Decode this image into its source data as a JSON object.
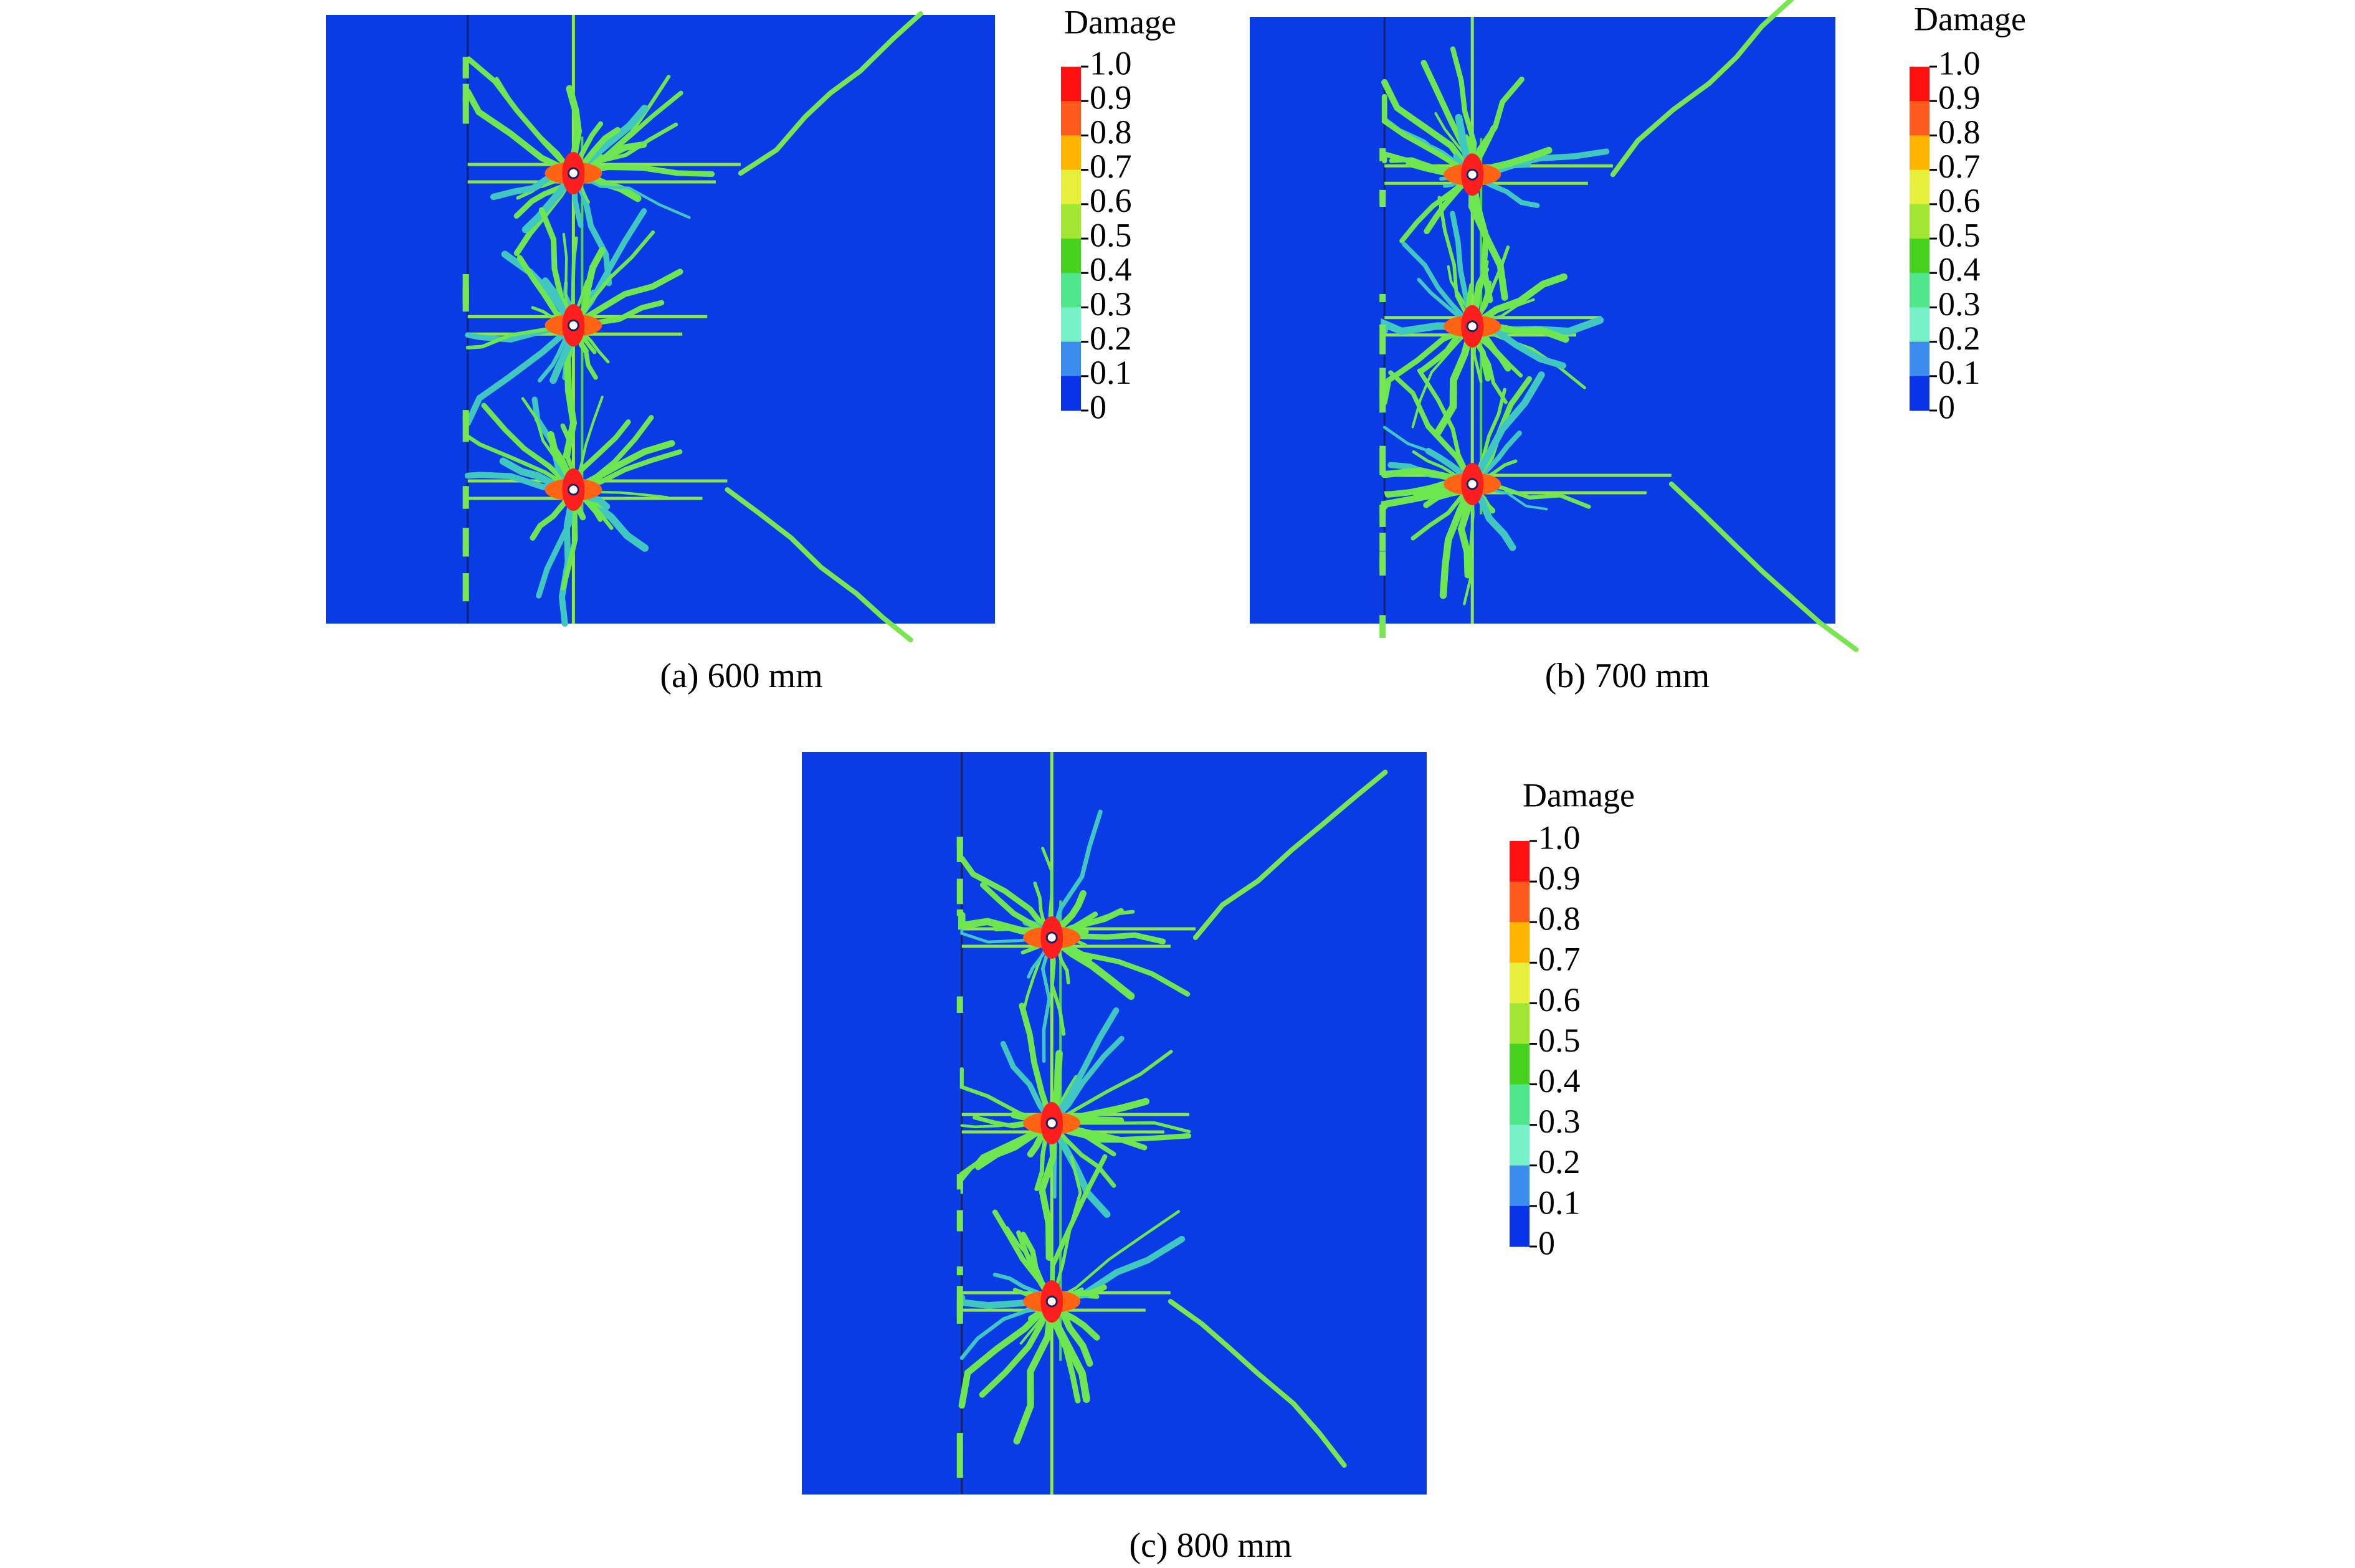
{
  "panels": [
    {
      "caption": "(a) 600 mm",
      "legend": {
        "title": "Damage",
        "labels": [
          "1.0",
          "0.9",
          "0.8",
          "0.7",
          "0.6",
          "0.5",
          "0.4",
          "0.3",
          "0.2",
          "0.1",
          "0"
        ]
      }
    },
    {
      "caption": "(b) 700 mm",
      "legend": {
        "title": "Damage",
        "labels": [
          "1.0",
          "0.9",
          "0.8",
          "0.7",
          "0.6",
          "0.5",
          "0.4",
          "0.3",
          "0.2",
          "0.1",
          "0"
        ]
      }
    },
    {
      "caption": "(c) 800 mm",
      "legend": {
        "title": "Damage",
        "labels": [
          "1.0",
          "0.9",
          "0.8",
          "0.7",
          "0.6",
          "0.5",
          "0.4",
          "0.3",
          "0.2",
          "0.1",
          "0"
        ]
      }
    }
  ]
}
